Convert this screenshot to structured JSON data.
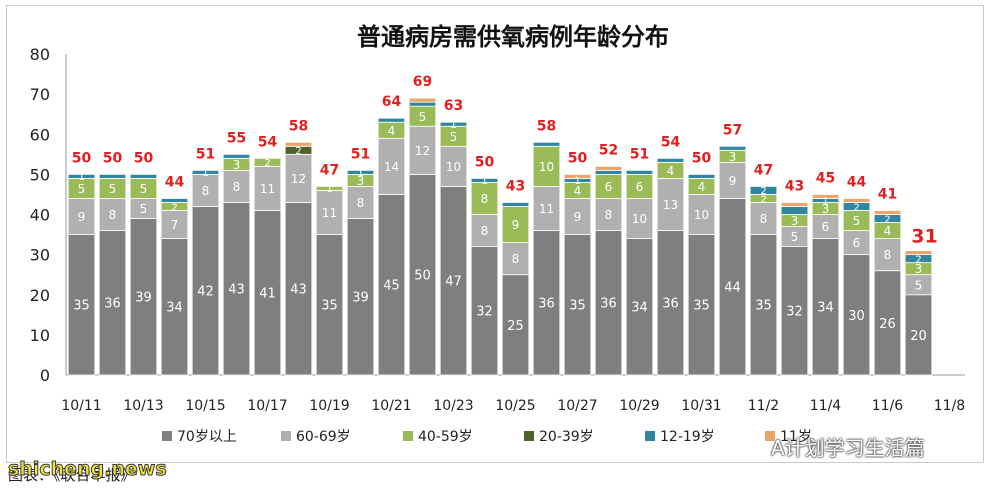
{
  "chart_data": {
    "type": "bar",
    "stacked": true,
    "title": "普通病房需供氧病例年龄分布",
    "ylim": [
      0,
      80
    ],
    "yticks": [
      0,
      10,
      20,
      30,
      40,
      50,
      60,
      70,
      80
    ],
    "grid": false,
    "legend_position": "bottom",
    "categories": [
      "10/11",
      "10/12",
      "10/13",
      "10/14",
      "10/15",
      "10/16",
      "10/17",
      "10/18",
      "10/19",
      "10/20",
      "10/21",
      "10/22",
      "10/23",
      "10/24",
      "10/25",
      "10/26",
      "10/27",
      "10/28",
      "10/29",
      "10/30",
      "10/31",
      "11/1",
      "11/2",
      "11/3",
      "11/4",
      "11/5",
      "11/6",
      "11/7",
      "11/8"
    ],
    "xtick_labels": [
      "10/11",
      "",
      "10/13",
      "",
      "10/15",
      "",
      "10/17",
      "",
      "10/19",
      "",
      "10/21",
      "",
      "10/23",
      "",
      "10/25",
      "",
      "10/27",
      "",
      "10/29",
      "",
      "10/31",
      "",
      "11/2",
      "",
      "11/4",
      "",
      "11/6",
      "",
      "11/8"
    ],
    "totals": [
      50,
      50,
      50,
      44,
      51,
      55,
      54,
      58,
      47,
      51,
      64,
      69,
      63,
      50,
      43,
      58,
      50,
      52,
      51,
      54,
      50,
      57,
      47,
      43,
      45,
      44,
      41,
      31,
      null
    ],
    "series": [
      {
        "name": "70岁以上",
        "color": "#7f7f7f",
        "values": [
          35,
          36,
          39,
          34,
          42,
          43,
          41,
          43,
          35,
          39,
          45,
          50,
          47,
          32,
          25,
          36,
          35,
          36,
          34,
          36,
          35,
          44,
          35,
          32,
          34,
          30,
          26,
          20,
          null
        ],
        "labels": [
          35,
          36,
          39,
          34,
          42,
          43,
          41,
          43,
          35,
          39,
          45,
          50,
          47,
          32,
          25,
          36,
          35,
          36,
          34,
          36,
          35,
          44,
          35,
          32,
          34,
          30,
          26,
          20,
          null
        ]
      },
      {
        "name": "60-69岁",
        "color": "#b0b0b0",
        "values": [
          9,
          8,
          5,
          7,
          8,
          8,
          11,
          12,
          11,
          8,
          14,
          12,
          10,
          8,
          8,
          11,
          9,
          8,
          10,
          13,
          10,
          9,
          8,
          5,
          6,
          6,
          8,
          5,
          null
        ],
        "labels": [
          9,
          8,
          5,
          7,
          8,
          8,
          11,
          12,
          11,
          8,
          14,
          12,
          10,
          8,
          8,
          11,
          9,
          8,
          10,
          13,
          10,
          9,
          8,
          5,
          6,
          6,
          8,
          5,
          null
        ]
      },
      {
        "name": "40-59岁",
        "color": "#9bbb59",
        "values": [
          5,
          5,
          5,
          2,
          0,
          3,
          2,
          0,
          1,
          3,
          4,
          5,
          5,
          8,
          9,
          10,
          4,
          6,
          6,
          4,
          4,
          3,
          2,
          3,
          3,
          5,
          4,
          3,
          null
        ],
        "labels": [
          5,
          5,
          5,
          2,
          null,
          3,
          2,
          null,
          1,
          3,
          4,
          5,
          5,
          8,
          9,
          10,
          4,
          6,
          6,
          4,
          4,
          3,
          2,
          3,
          3,
          5,
          4,
          3,
          null
        ]
      },
      {
        "name": "20-39岁",
        "color": "#4f6228",
        "values": [
          0,
          0,
          0,
          0,
          0,
          0,
          0,
          2,
          0,
          0,
          0,
          0,
          0,
          0,
          0,
          0,
          0,
          0,
          0,
          0,
          0,
          0,
          0,
          0,
          0,
          0,
          0,
          0,
          null
        ],
        "labels": [
          null,
          null,
          null,
          null,
          null,
          null,
          null,
          2,
          null,
          null,
          null,
          null,
          null,
          null,
          null,
          null,
          null,
          null,
          null,
          null,
          null,
          null,
          null,
          null,
          null,
          null,
          null,
          null,
          null
        ]
      },
      {
        "name": "12-19岁",
        "color": "#31859c",
        "values": [
          1,
          1,
          1,
          1,
          1,
          1,
          0,
          0,
          0,
          1,
          1,
          1,
          1,
          1,
          1,
          1,
          1,
          1,
          1,
          1,
          1,
          1,
          2,
          2,
          1,
          2,
          2,
          2,
          null
        ],
        "labels": [
          1,
          null,
          null,
          null,
          1,
          null,
          null,
          null,
          null,
          1,
          null,
          null,
          1,
          1,
          null,
          null,
          1,
          null,
          null,
          null,
          null,
          null,
          2,
          null,
          1,
          2,
          2,
          2,
          null
        ]
      },
      {
        "name": "11岁",
        "color": "#e9a66b",
        "values": [
          0,
          0,
          0,
          0,
          0,
          0,
          0,
          1,
          0,
          0,
          0,
          1,
          0,
          0,
          0,
          0,
          1,
          1,
          0,
          0,
          0,
          0,
          0,
          1,
          1,
          1,
          1,
          1,
          null
        ],
        "labels": [
          null,
          null,
          null,
          null,
          null,
          null,
          null,
          null,
          null,
          null,
          null,
          null,
          null,
          null,
          null,
          null,
          null,
          null,
          null,
          null,
          null,
          null,
          null,
          null,
          null,
          null,
          null,
          null,
          null
        ]
      }
    ]
  },
  "credit_text": "图表：《联合早报》",
  "watermark_site": "shicheng.news",
  "watermark_wechat": "A计划学习生活篇"
}
